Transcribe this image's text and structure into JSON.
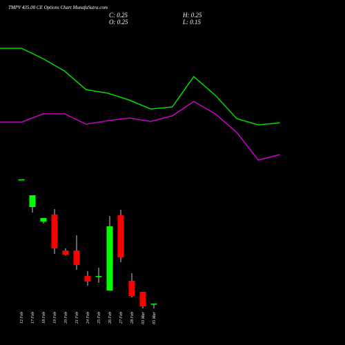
{
  "chart_data": [
    {
      "type": "candlestick",
      "title": "TMPV 435.00 CE Options Chart MunafaSutra.com",
      "annotations": [
        "C: 0.25",
        "H: 0.25",
        "O: 0.25",
        "L: 0.15"
      ],
      "categories": [
        "12 Feb",
        "17 Feb",
        "18 Feb",
        "19 Feb",
        "20 Feb",
        "21 Feb",
        "24 Feb",
        "25 Feb",
        "26 Feb",
        "27 Feb",
        "28 Feb",
        "03 Mar",
        "05 Mar"
      ],
      "open": [
        48,
        40,
        35.8,
        37.8,
        27.4,
        27.4,
        20,
        20,
        15.8,
        37.6,
        18.6,
        15.4,
        12
      ],
      "high": [
        48,
        43.4,
        36.8,
        39.4,
        28,
        31.8,
        21.4,
        22.4,
        37.4,
        39.2,
        20.8,
        15.4,
        12
      ],
      "low": [
        48,
        38.4,
        35.2,
        26.4,
        26,
        21.8,
        17.2,
        18,
        15.8,
        24,
        13.8,
        10.6,
        10.6
      ],
      "close": [
        48,
        43.4,
        36.8,
        28,
        26.2,
        23.2,
        18.4,
        20,
        34.4,
        25.4,
        14.2,
        11.2,
        12
      ],
      "up_color": "#00ff00",
      "down_color": "#ff0000",
      "ylim": [
        0,
        100
      ]
    },
    {
      "type": "line",
      "categories": [
        null,
        null,
        null,
        null,
        null,
        null,
        null,
        null,
        null,
        null,
        null,
        null,
        null,
        null
      ],
      "series": [
        {
          "color": "#00dd00",
          "values": [
            86,
            86,
            83,
            79.4,
            74,
            73,
            71,
            68.4,
            69,
            77.8,
            72.4,
            65.6,
            63.8,
            64.4
          ]
        },
        {
          "color": "#cc00cc",
          "values": [
            64.6,
            64.6,
            67,
            67,
            64,
            65,
            65.8,
            64.8,
            66.4,
            70.6,
            67,
            61.6,
            53.6,
            55.2
          ]
        }
      ],
      "ylim": [
        0,
        100
      ]
    }
  ]
}
